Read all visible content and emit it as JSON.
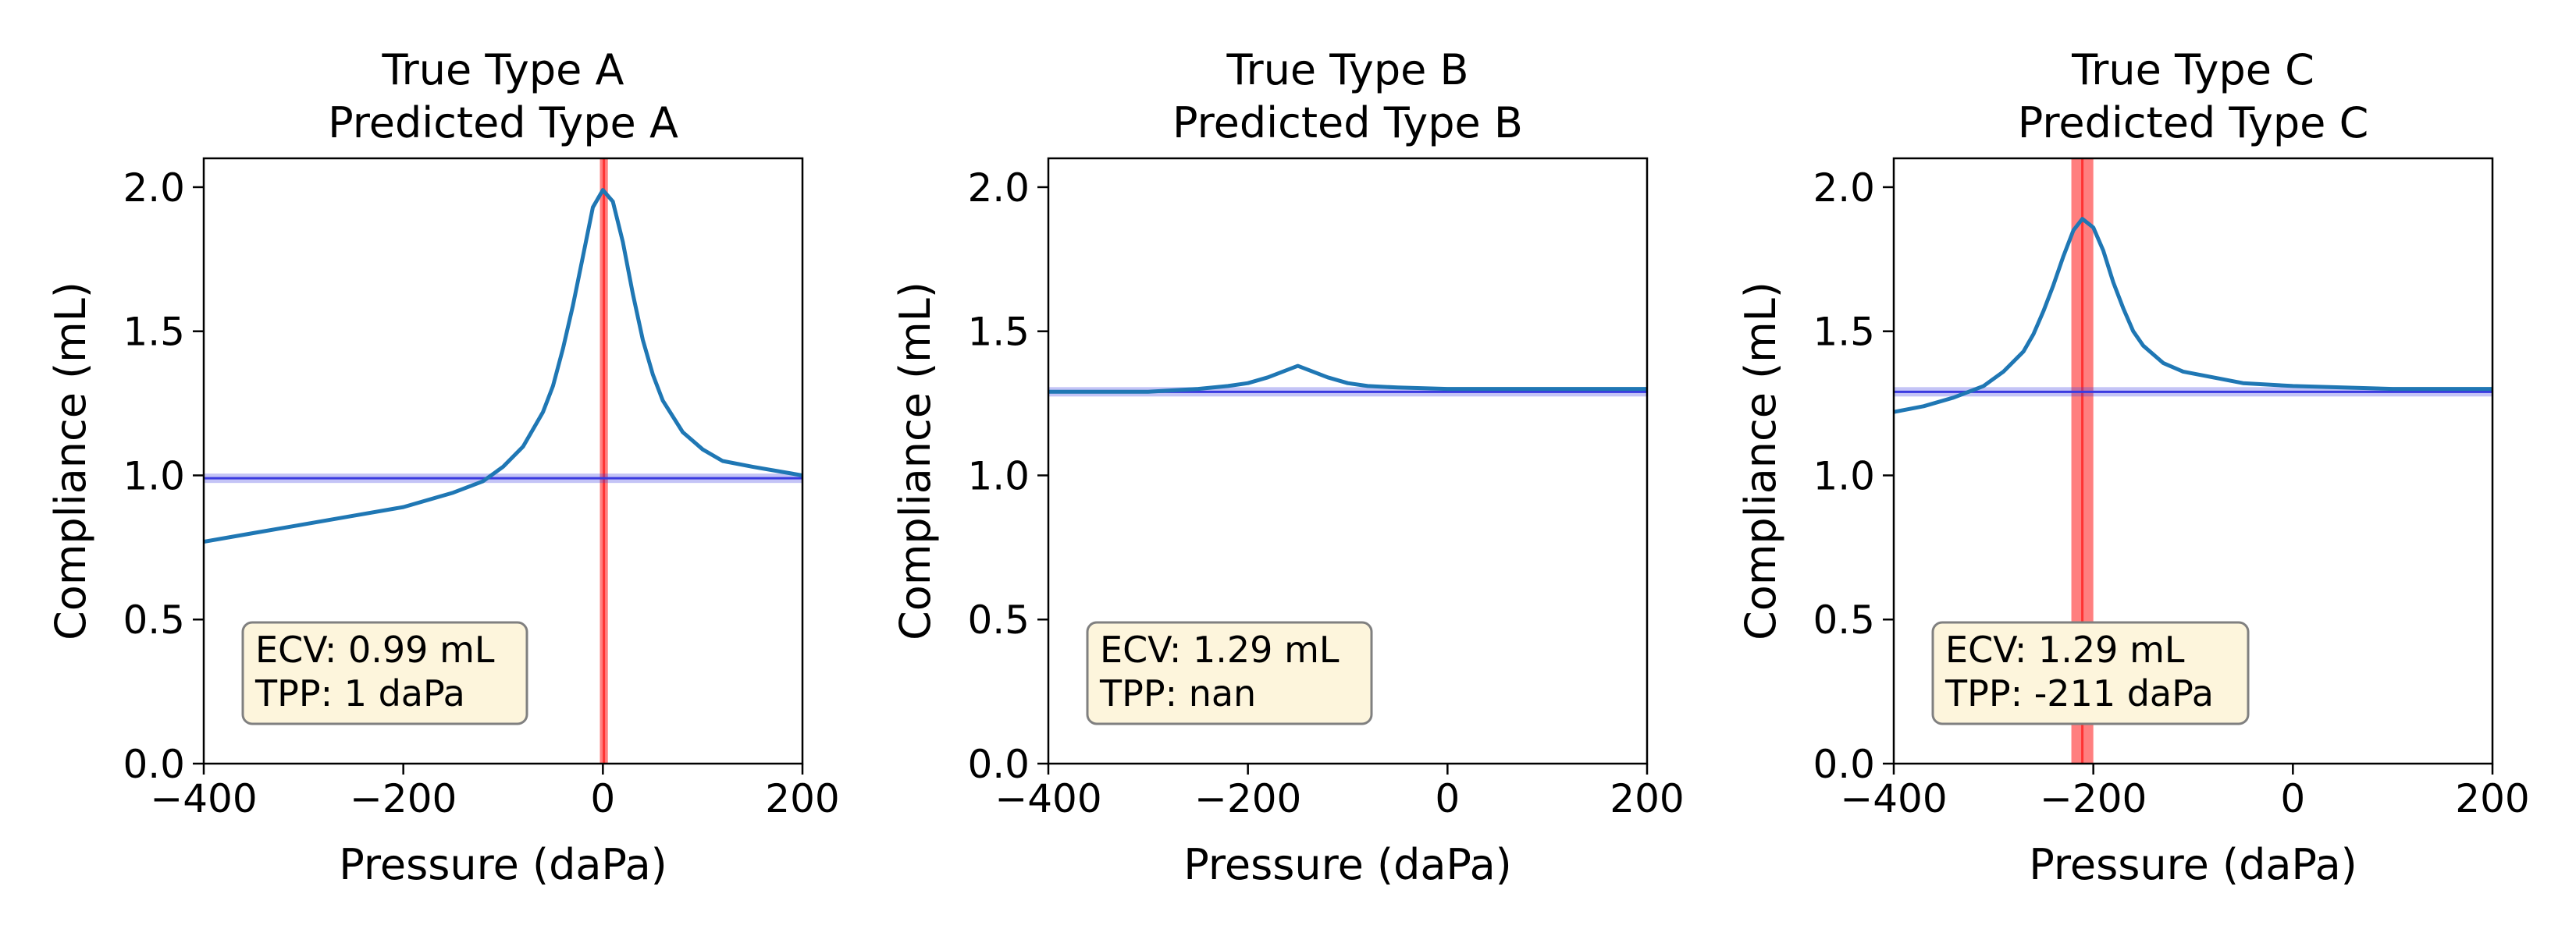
{
  "chart_data": [
    {
      "type": "line",
      "title": [
        "True Type A",
        "Predicted Type A"
      ],
      "xlabel": "Pressure (daPa)",
      "ylabel": "Compliance (mL)",
      "xlim": [
        -400,
        200
      ],
      "ylim": [
        0,
        2.1
      ],
      "xticks": [
        -400,
        -200,
        0,
        200
      ],
      "xtick_labels": [
        "−400",
        "−200",
        "0",
        "200"
      ],
      "yticks": [
        0.0,
        0.5,
        1.0,
        1.5,
        2.0
      ],
      "ytick_labels": [
        "0.0",
        "0.5",
        "1.0",
        "1.5",
        "2.0"
      ],
      "series": [
        {
          "color": "#1f77b4",
          "x": [
            -400,
            -350,
            -300,
            -250,
            -200,
            -150,
            -120,
            -100,
            -80,
            -60,
            -50,
            -40,
            -30,
            -20,
            -10,
            0,
            10,
            20,
            30,
            40,
            50,
            60,
            80,
            100,
            120,
            150,
            200
          ],
          "y": [
            0.77,
            0.8,
            0.83,
            0.86,
            0.89,
            0.94,
            0.98,
            1.03,
            1.1,
            1.22,
            1.31,
            1.44,
            1.59,
            1.76,
            1.93,
            1.99,
            1.95,
            1.81,
            1.63,
            1.47,
            1.35,
            1.26,
            1.15,
            1.09,
            1.05,
            1.03,
            1.0
          ]
        }
      ],
      "hline": {
        "y": 0.99,
        "color": "#3a3ae0"
      },
      "vspan": {
        "x0": -3,
        "x1": 5,
        "center": 1,
        "color": "#ff0000"
      },
      "annotation": [
        "ECV: 0.99 mL",
        "TPP: 1 daPa"
      ]
    },
    {
      "type": "line",
      "title": [
        "True Type B",
        "Predicted Type B"
      ],
      "xlabel": "Pressure (daPa)",
      "ylabel": "Compliance (mL)",
      "xlim": [
        -400,
        200
      ],
      "ylim": [
        0,
        2.1
      ],
      "xticks": [
        -400,
        -200,
        0,
        200
      ],
      "xtick_labels": [
        "−400",
        "−200",
        "0",
        "200"
      ],
      "yticks": [
        0.0,
        0.5,
        1.0,
        1.5,
        2.0
      ],
      "ytick_labels": [
        "0.0",
        "0.5",
        "1.0",
        "1.5",
        "2.0"
      ],
      "series": [
        {
          "color": "#1f77b4",
          "x": [
            -400,
            -300,
            -250,
            -220,
            -200,
            -180,
            -165,
            -150,
            -135,
            -120,
            -100,
            -80,
            -50,
            0,
            100,
            200
          ],
          "y": [
            1.29,
            1.29,
            1.3,
            1.31,
            1.32,
            1.34,
            1.36,
            1.38,
            1.36,
            1.34,
            1.32,
            1.31,
            1.305,
            1.3,
            1.3,
            1.3
          ]
        }
      ],
      "hline": {
        "y": 1.29,
        "color": "#3a3ae0"
      },
      "vspan": null,
      "annotation": [
        "ECV: 1.29 mL",
        "TPP: nan"
      ]
    },
    {
      "type": "line",
      "title": [
        "True Type C",
        "Predicted Type C"
      ],
      "xlabel": "Pressure (daPa)",
      "ylabel": "Compliance (mL)",
      "xlim": [
        -400,
        200
      ],
      "ylim": [
        0,
        2.1
      ],
      "xticks": [
        -400,
        -200,
        0,
        200
      ],
      "xtick_labels": [
        "−400",
        "−200",
        "0",
        "200"
      ],
      "yticks": [
        0.0,
        0.5,
        1.0,
        1.5,
        2.0
      ],
      "ytick_labels": [
        "0.0",
        "0.5",
        "1.0",
        "1.5",
        "2.0"
      ],
      "series": [
        {
          "color": "#1f77b4",
          "x": [
            -400,
            -370,
            -340,
            -310,
            -290,
            -270,
            -260,
            -250,
            -240,
            -230,
            -220,
            -211,
            -200,
            -190,
            -180,
            -170,
            -160,
            -150,
            -130,
            -110,
            -80,
            -50,
            0,
            100,
            200
          ],
          "y": [
            1.22,
            1.24,
            1.27,
            1.31,
            1.36,
            1.43,
            1.49,
            1.57,
            1.66,
            1.76,
            1.85,
            1.89,
            1.86,
            1.78,
            1.67,
            1.58,
            1.5,
            1.45,
            1.39,
            1.36,
            1.34,
            1.32,
            1.31,
            1.3,
            1.3
          ]
        }
      ],
      "hline": {
        "y": 1.29,
        "color": "#3a3ae0"
      },
      "vspan": {
        "x0": -222,
        "x1": -200,
        "center": -211,
        "color": "#ff0000"
      },
      "annotation": [
        "ECV: 1.29 mL",
        "TPP: -211 daPa"
      ]
    }
  ]
}
